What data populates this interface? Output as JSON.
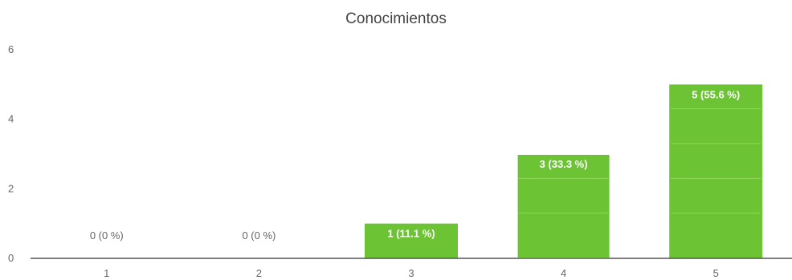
{
  "chart_data": {
    "type": "bar",
    "title": "Conocimientos",
    "categories": [
      "1",
      "2",
      "3",
      "4",
      "5"
    ],
    "values": [
      0,
      0,
      1,
      3,
      5
    ],
    "data_labels": [
      "0 (0 %)",
      "0 (0 %)",
      "1 (11.1 %)",
      "3 (33.3 %)",
      "5 (55.6 %)"
    ],
    "ylim": [
      0,
      6
    ],
    "yticks": [
      "0",
      "2",
      "4",
      "6"
    ],
    "grid": false,
    "bar_color": "#6cc334",
    "bar_highlight_color": "#8fd85a"
  }
}
